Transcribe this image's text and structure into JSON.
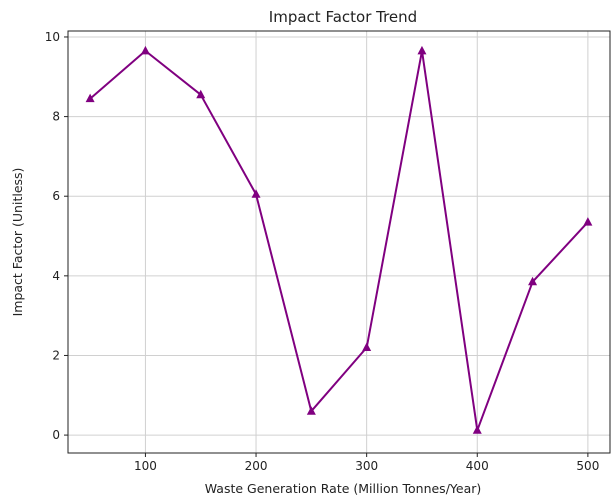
{
  "chart_data": {
    "type": "line",
    "title": "Impact Factor Trend",
    "xlabel": "Waste Generation Rate (Million Tonnes/Year)",
    "ylabel": "Impact Factor (Unitless)",
    "x": [
      50,
      100,
      150,
      200,
      250,
      300,
      350,
      400,
      450,
      500
    ],
    "series": [
      {
        "values": [
          8.45,
          9.65,
          8.55,
          6.05,
          0.6,
          2.2,
          9.65,
          0.12,
          3.85,
          5.35
        ],
        "color": "#800080",
        "marker": "triangle-up-icon"
      }
    ],
    "xlim": [
      30,
      520
    ],
    "ylim": [
      -0.45,
      10.15
    ],
    "xticks": [
      100,
      200,
      300,
      400,
      500
    ],
    "yticks": [
      0,
      2,
      4,
      6,
      8,
      10
    ],
    "grid": true,
    "legend": "none"
  }
}
